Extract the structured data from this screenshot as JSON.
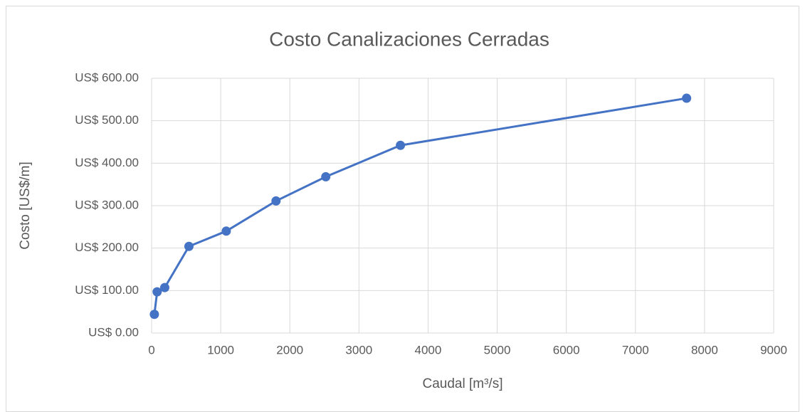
{
  "chart_data": {
    "type": "line",
    "title": "Costo Canalizaciones Cerradas",
    "x_label": "Caudal [m³/s]",
    "y_label": "Costo [US$/m]",
    "x": [
      40,
      80,
      190,
      540,
      1080,
      1800,
      2520,
      3600,
      7740
    ],
    "values": [
      44,
      97,
      107,
      204,
      240,
      311,
      368,
      442,
      553
    ],
    "color": "#4472c4",
    "xlim": [
      0,
      9000
    ],
    "xticks": [
      0,
      1000,
      2000,
      3000,
      4000,
      5000,
      6000,
      7000,
      8000,
      9000
    ],
    "ylim": [
      0,
      600
    ],
    "yticks": [
      {
        "value": 0,
        "label": "US$ 0.00"
      },
      {
        "value": 100,
        "label": "US$ 100.00"
      },
      {
        "value": 200,
        "label": "US$ 200.00"
      },
      {
        "value": 300,
        "label": "US$ 300.00"
      },
      {
        "value": 400,
        "label": "US$ 400.00"
      },
      {
        "value": 500,
        "label": "US$ 500.00"
      },
      {
        "value": 600,
        "label": "US$ 600.00"
      }
    ],
    "grid": true
  }
}
